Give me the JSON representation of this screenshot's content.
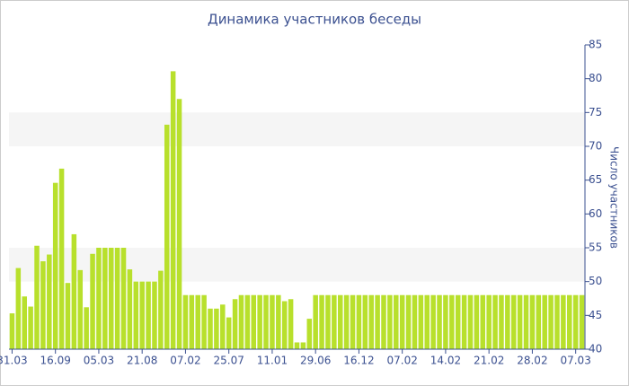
{
  "chart_data": {
    "type": "bar",
    "title": "Динамика участников беседы",
    "y_label": "Число участников",
    "categories": [
      "31.03",
      null,
      null,
      null,
      null,
      null,
      null,
      "16.09",
      null,
      null,
      null,
      null,
      null,
      null,
      "05.03",
      null,
      null,
      null,
      null,
      null,
      null,
      "21.08",
      null,
      null,
      null,
      null,
      null,
      null,
      "07.02",
      null,
      null,
      null,
      null,
      null,
      null,
      "25.07",
      null,
      null,
      null,
      null,
      null,
      null,
      "11.01",
      null,
      null,
      null,
      null,
      null,
      null,
      "29.06",
      null,
      null,
      null,
      null,
      null,
      null,
      "16.12",
      null,
      null,
      null,
      null,
      null,
      null,
      "07.02",
      null,
      null,
      null,
      null,
      null,
      null,
      "14.02",
      null,
      null,
      null,
      null,
      null,
      null,
      "21.02",
      null,
      null,
      null,
      null,
      null,
      null,
      "28.02",
      null,
      null,
      null,
      null,
      null,
      null,
      "07.03",
      null
    ],
    "values": [
      45.3,
      52,
      47.8,
      46.3,
      55.3,
      53,
      54,
      64.6,
      66.7,
      49.8,
      57,
      51.7,
      46.2,
      54.1,
      55,
      55,
      55,
      55,
      55,
      51.8,
      50,
      50,
      50,
      50,
      51.6,
      73.2,
      81.1,
      77,
      48,
      48,
      48,
      48,
      46,
      46,
      46.6,
      44.7,
      47.4,
      48,
      48,
      48,
      48,
      48,
      48,
      48,
      47.1,
      47.4,
      41,
      41,
      44.5,
      48,
      48,
      48,
      48,
      48,
      48,
      48,
      48,
      48,
      48,
      48,
      48,
      48,
      48,
      48,
      48,
      48,
      48,
      48,
      48,
      48,
      48,
      48,
      48,
      48,
      48,
      48,
      48,
      48,
      48,
      48,
      48,
      48,
      48,
      48,
      48,
      48,
      48,
      48,
      48,
      48,
      48,
      48,
      48
    ],
    "color": "#b8e02c",
    "ylim": [
      40,
      85
    ],
    "yticks": [
      40,
      45,
      50,
      55,
      60,
      65,
      70,
      75,
      80,
      85
    ],
    "y_axis_side": "right",
    "grid": "bands"
  }
}
